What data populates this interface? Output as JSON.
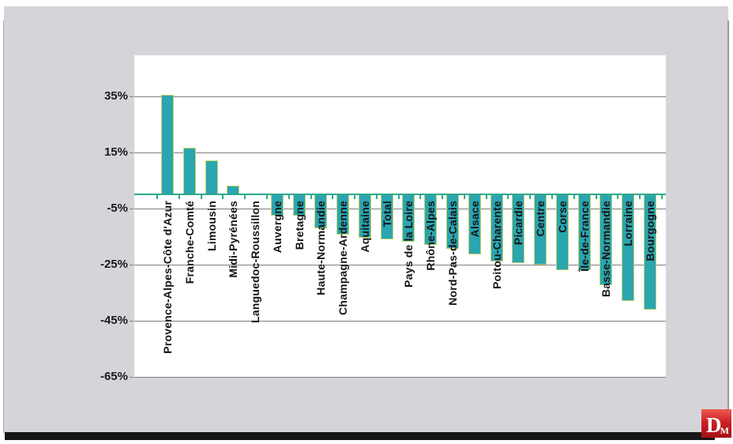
{
  "chart_data": {
    "type": "bar",
    "title": "",
    "xlabel": "",
    "ylabel": "",
    "categories": [
      "Provence-Alpes-Côte d'Azur",
      "Franche-Comté",
      "Limousin",
      "Midi-Pyrénées",
      "Languedoc-Roussillon",
      "Auvergne",
      "Bretagne",
      "Haute-Normandie",
      "Champagne-Ardenne",
      "Aquitaine",
      "Total",
      "Pays de la Loire",
      "Rhône-Alpes",
      "Nord-Pas-de-Calais",
      "Alsace",
      "Poitou-Charente",
      "Picardie",
      "Centre",
      "Corse",
      "Île-de-France",
      "Basse-Normandie",
      "Lorraine",
      "Bourgogne"
    ],
    "values": [
      35.5,
      16.5,
      12,
      3,
      0,
      -7.5,
      -7.5,
      -12,
      -14.5,
      -15.5,
      -16,
      -17,
      -18,
      -19.5,
      -21.5,
      -24,
      -24.5,
      -25,
      -27,
      -27,
      -32.5,
      -38,
      -41
    ],
    "yticks": [
      35,
      15,
      -5,
      -25,
      -45,
      -65
    ],
    "ytick_labels": [
      "35%",
      "15%",
      "-5%",
      "-25%",
      "-45%",
      "-65%"
    ],
    "ylim": [
      -65.4,
      49.6
    ],
    "grid": true,
    "legend_position": "none",
    "colors": {
      "bar_fill": "#2ba5b0",
      "bar_border": "#c3d569",
      "baseline": "#2fa98c",
      "gridline": "#7f7f7f",
      "plot_bg": "#ffffff",
      "card_bg": "#d5d4d8"
    }
  },
  "logo": {
    "d": "D",
    "m": "M"
  }
}
